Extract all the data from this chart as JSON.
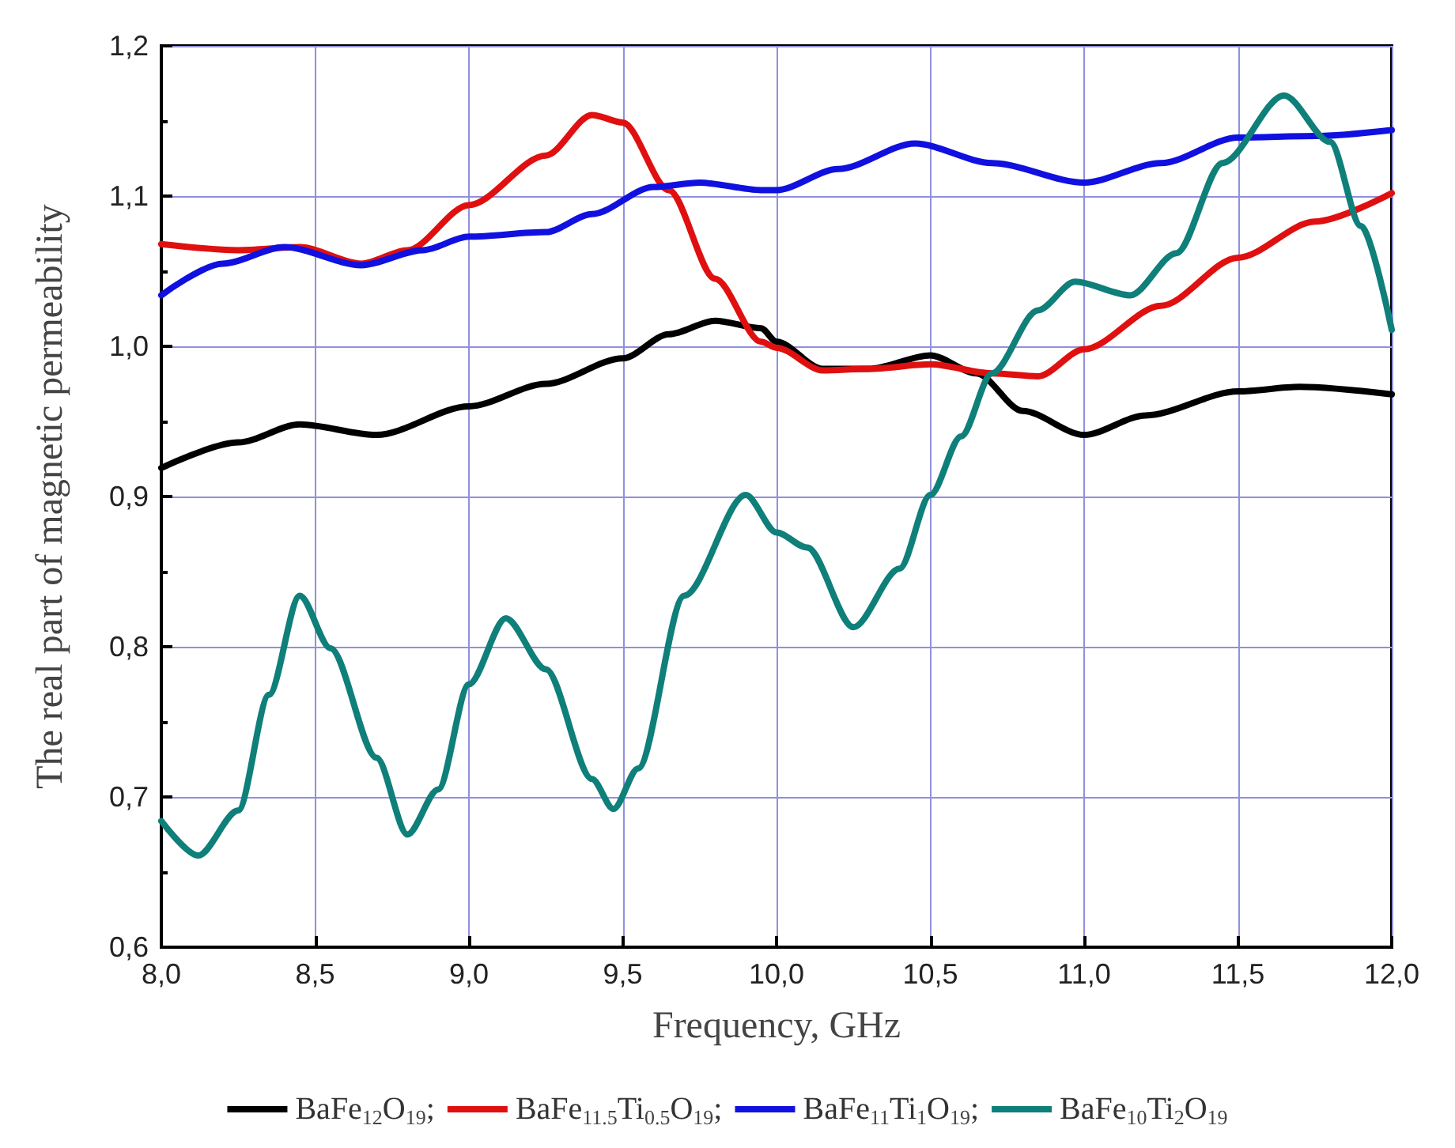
{
  "chart_data": {
    "type": "line",
    "xlabel": "Frequency, GHz",
    "ylabel": "The real part of magnetic permeability",
    "xlim": [
      8.0,
      12.0
    ],
    "xticks": [
      {
        "value": 8.0,
        "label": "8,0"
      },
      {
        "value": 8.5,
        "label": "8,5"
      },
      {
        "value": 9.0,
        "label": "9,0"
      },
      {
        "value": 9.5,
        "label": "9,5"
      },
      {
        "value": 10.0,
        "label": "10,0"
      },
      {
        "value": 10.5,
        "label": "10,5"
      },
      {
        "value": 11.0,
        "label": "11,0"
      },
      {
        "value": 11.5,
        "label": "11,5"
      },
      {
        "value": 12.0,
        "label": "12,0"
      }
    ],
    "ylim": [
      0.6,
      1.2
    ],
    "yticks": [
      {
        "value": 0.6,
        "label": "0,6"
      },
      {
        "value": 0.7,
        "label": "0,7"
      },
      {
        "value": 0.8,
        "label": "0,8"
      },
      {
        "value": 0.9,
        "label": "0,9"
      },
      {
        "value": 1.0,
        "label": "1,0"
      },
      {
        "value": 1.1,
        "label": "1,1"
      },
      {
        "value": 1.2,
        "label": "1,2"
      }
    ],
    "grid": true,
    "legend": "bottom",
    "marker": "none",
    "line_style": "solid",
    "series": [
      {
        "name": "BaFe$_{12}$O$_{19}$;",
        "color": "#000000",
        "x": [
          8.0,
          8.25,
          8.45,
          8.7,
          9.0,
          9.25,
          9.5,
          9.65,
          9.8,
          9.95,
          10.0,
          10.15,
          10.3,
          10.5,
          10.65,
          10.8,
          11.0,
          11.2,
          11.5,
          11.7,
          12.0
        ],
        "values": [
          0.919,
          0.936,
          0.948,
          0.941,
          0.96,
          0.975,
          0.992,
          1.008,
          1.017,
          1.012,
          1.003,
          0.985,
          0.985,
          0.994,
          0.982,
          0.957,
          0.941,
          0.954,
          0.97,
          0.973,
          0.968
        ]
      },
      {
        "name": "BaFe$_{11.5}$Ti$_{0.5}$O$_{19}$;",
        "color": "#e01010",
        "x": [
          8.0,
          8.25,
          8.45,
          8.65,
          8.8,
          9.0,
          9.25,
          9.4,
          9.5,
          9.65,
          9.8,
          9.95,
          10.0,
          10.15,
          10.3,
          10.5,
          10.7,
          10.85,
          11.0,
          11.25,
          11.5,
          11.75,
          12.0
        ],
        "values": [
          1.068,
          1.064,
          1.066,
          1.055,
          1.064,
          1.094,
          1.127,
          1.154,
          1.149,
          1.104,
          1.045,
          1.003,
          0.999,
          0.984,
          0.985,
          0.988,
          0.982,
          0.98,
          0.998,
          1.027,
          1.059,
          1.083,
          1.102
        ]
      },
      {
        "name": "BaFe$_{11}$Ti$_{1}$O$_{19}$;",
        "color": "#1010e0",
        "x": [
          8.0,
          8.2,
          8.4,
          8.65,
          8.85,
          9.0,
          9.25,
          9.4,
          9.6,
          9.75,
          9.95,
          10.0,
          10.2,
          10.45,
          10.7,
          11.0,
          11.25,
          11.5,
          11.75,
          12.0
        ],
        "values": [
          1.034,
          1.055,
          1.066,
          1.054,
          1.064,
          1.073,
          1.076,
          1.088,
          1.106,
          1.109,
          1.104,
          1.104,
          1.118,
          1.135,
          1.122,
          1.109,
          1.122,
          1.139,
          1.14,
          1.144
        ]
      },
      {
        "name": "BaFe$_{10}$Ti$_{2}$O$_{19}$",
        "color": "#0f7f7a",
        "x": [
          8.0,
          8.12,
          8.25,
          8.35,
          8.45,
          8.55,
          8.7,
          8.8,
          8.9,
          9.0,
          9.12,
          9.25,
          9.4,
          9.47,
          9.55,
          9.7,
          9.9,
          10.0,
          10.1,
          10.25,
          10.4,
          10.5,
          10.6,
          10.7,
          10.85,
          10.97,
          11.15,
          11.3,
          11.45,
          11.65,
          11.8,
          11.9,
          12.0
        ],
        "values": [
          0.684,
          0.661,
          0.691,
          0.768,
          0.834,
          0.799,
          0.726,
          0.675,
          0.705,
          0.775,
          0.819,
          0.785,
          0.712,
          0.692,
          0.719,
          0.834,
          0.901,
          0.876,
          0.866,
          0.813,
          0.852,
          0.901,
          0.94,
          0.982,
          1.024,
          1.043,
          1.034,
          1.062,
          1.122,
          1.167,
          1.136,
          1.08,
          1.011
        ]
      }
    ]
  }
}
